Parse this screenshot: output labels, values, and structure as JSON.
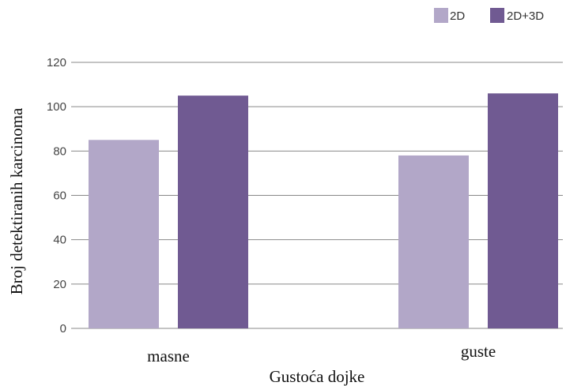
{
  "chart_data": {
    "type": "bar",
    "title": "",
    "xlabel": "Gustoća dojke",
    "ylabel": "Broj detektiranih karcinoma",
    "categories": [
      "masne",
      "guste"
    ],
    "series": [
      {
        "name": "2D",
        "values": [
          85,
          78
        ],
        "color": "#b2a7c8"
      },
      {
        "name": "2D+3D",
        "values": [
          105,
          106
        ],
        "color": "#705a92"
      }
    ],
    "ylim": [
      0,
      120
    ],
    "yticks": [
      0,
      20,
      40,
      60,
      80,
      100,
      120
    ],
    "grid": true,
    "legend_position": "top-right"
  }
}
